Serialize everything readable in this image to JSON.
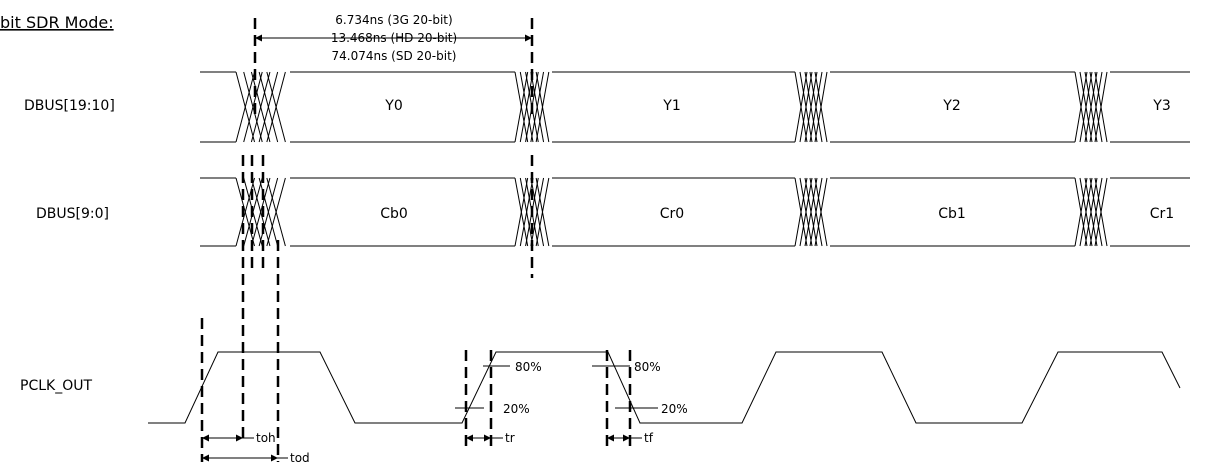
{
  "title": "bit SDR Mode:",
  "period_labels": [
    "6.734ns (3G 20-bit)",
    "13.468ns (HD 20-bit)",
    "74.074ns (SD 20-bit)"
  ],
  "signals": {
    "dbus_high": {
      "name": "DBUS[19:10]",
      "words": [
        "Y0",
        "Y1",
        "Y2",
        "Y3"
      ]
    },
    "dbus_low": {
      "name": "DBUS[9:0]",
      "words": [
        "Cb0",
        "Cr0",
        "Cb1",
        "Cr1"
      ]
    },
    "pclk": {
      "name": "PCLK_OUT"
    }
  },
  "annotations": {
    "rise_high": "80%",
    "rise_low": "20%",
    "fall_high": "80%",
    "fall_low": "20%",
    "toh": "toh",
    "tod": "tod",
    "tr": "tr",
    "tf": "tf"
  }
}
